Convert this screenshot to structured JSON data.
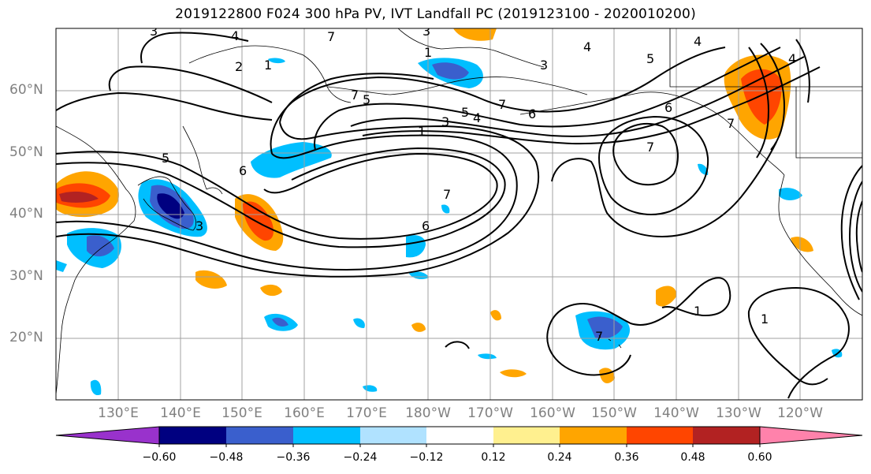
{
  "title": "2019122800 F024 300 hPa PV, IVT Landfall PC (2019123100 - 2020010200)",
  "lat_labels": [
    "60°N",
    "50°N",
    "40°N",
    "30°N",
    "20°N"
  ],
  "lon_labels": [
    "130°E",
    "140°E",
    "150°E",
    "160°E",
    "170°E",
    "180°W",
    "170°W",
    "160°W",
    "150°W",
    "140°W",
    "130°W",
    "120°W"
  ],
  "map_extent": {
    "lon_min": 120,
    "lon_max": 250,
    "lat_min": 10,
    "lat_max": 70
  },
  "pv_contour_labels": [
    "1",
    "2",
    "3",
    "4",
    "5",
    "6",
    "7"
  ],
  "colorbar": {
    "colors": [
      "#9932cc",
      "#000080",
      "#3a5fcd",
      "#00bfff",
      "#b0e2ff",
      "#ffffff",
      "#fff08f",
      "#ffa500",
      "#ff4500",
      "#b22222",
      "#ff82ab"
    ],
    "tick_labels": [
      "−0.60",
      "−0.48",
      "−0.36",
      "−0.24",
      "−0.12",
      "0.12",
      "0.24",
      "0.36",
      "0.48",
      "0.60"
    ],
    "tick_values": [
      -0.6,
      -0.48,
      -0.36,
      -0.24,
      -0.12,
      0.12,
      0.24,
      0.36,
      0.48,
      0.6
    ],
    "extend": "both"
  }
}
